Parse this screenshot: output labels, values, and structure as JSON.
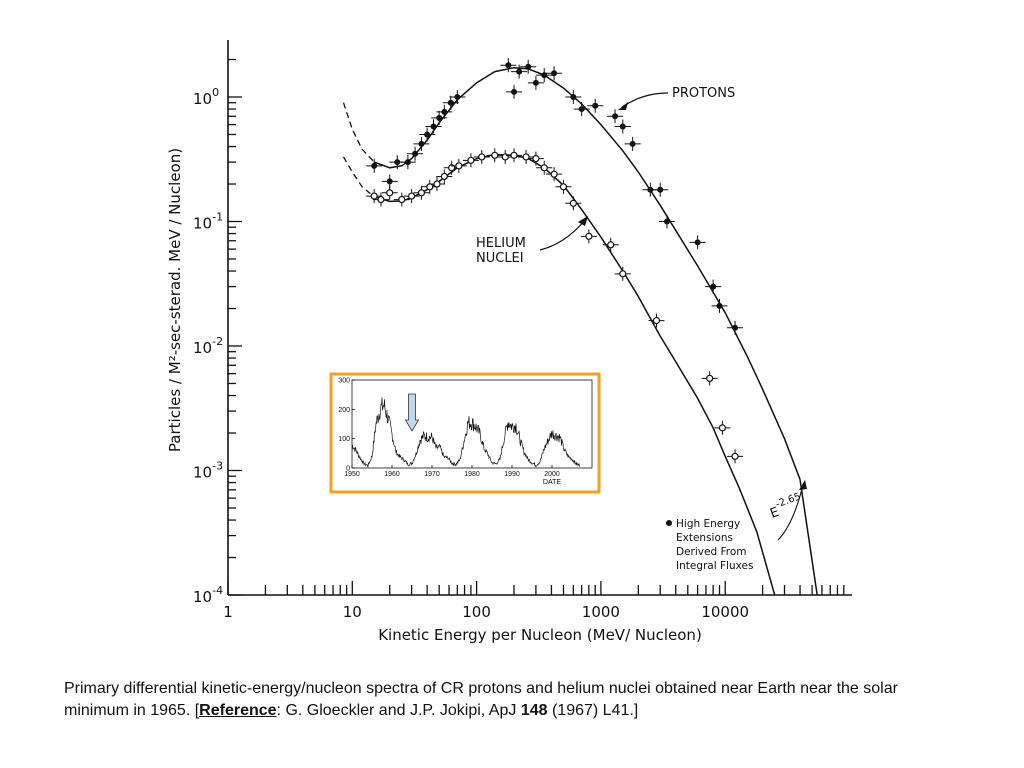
{
  "chart_data": [
    {
      "type": "scatter",
      "title": "",
      "xlabel": "Kinetic Energy per Nucleon (MeV/ Nucleon)",
      "ylabel": "Particles / M²-sec-sterad. MeV / Nucleon)",
      "xscale": "log",
      "yscale": "log",
      "xlim": [
        1,
        70000
      ],
      "ylim": [
        0.0001,
        4
      ],
      "x_tick_labels": [
        "1",
        "10",
        "100",
        "1000",
        "10000"
      ],
      "x_tick_values": [
        1,
        10,
        100,
        1000,
        10000
      ],
      "y_tick_labels": [
        {
          "base": "10",
          "exp": "0",
          "value": 1
        },
        {
          "base": "10",
          "exp": "-1",
          "value": 0.1
        },
        {
          "base": "10",
          "exp": "-2",
          "value": 0.01
        },
        {
          "base": "10",
          "exp": "-3",
          "value": 0.001
        },
        {
          "base": "10",
          "exp": "-4",
          "value": 0.0001
        }
      ],
      "series": [
        {
          "name": "PROTONS",
          "points": [
            {
              "x": 15,
              "y": 0.28
            },
            {
              "x": 20,
              "y": 0.21
            },
            {
              "x": 23,
              "y": 0.3
            },
            {
              "x": 28,
              "y": 0.3
            },
            {
              "x": 32,
              "y": 0.35
            },
            {
              "x": 36,
              "y": 0.42
            },
            {
              "x": 40,
              "y": 0.5
            },
            {
              "x": 45,
              "y": 0.58
            },
            {
              "x": 50,
              "y": 0.68
            },
            {
              "x": 55,
              "y": 0.76
            },
            {
              "x": 62,
              "y": 0.9
            },
            {
              "x": 70,
              "y": 1.0
            },
            {
              "x": 180,
              "y": 1.8
            },
            {
              "x": 200,
              "y": 1.1
            },
            {
              "x": 220,
              "y": 1.6
            },
            {
              "x": 260,
              "y": 1.75
            },
            {
              "x": 300,
              "y": 1.3
            },
            {
              "x": 350,
              "y": 1.5
            },
            {
              "x": 420,
              "y": 1.55
            },
            {
              "x": 600,
              "y": 1.0
            },
            {
              "x": 700,
              "y": 0.8
            },
            {
              "x": 900,
              "y": 0.85
            },
            {
              "x": 1300,
              "y": 0.7
            },
            {
              "x": 1500,
              "y": 0.58
            },
            {
              "x": 1800,
              "y": 0.42
            },
            {
              "x": 2500,
              "y": 0.18
            },
            {
              "x": 3000,
              "y": 0.18
            },
            {
              "x": 3400,
              "y": 0.1
            },
            {
              "x": 6000,
              "y": 0.068
            },
            {
              "x": 8000,
              "y": 0.03
            },
            {
              "x": 9000,
              "y": 0.021
            },
            {
              "x": 12000,
              "y": 0.014
            }
          ]
        },
        {
          "name": "HELIUM NUCLEI",
          "points": [
            {
              "x": 15,
              "y": 0.16
            },
            {
              "x": 17,
              "y": 0.15
            },
            {
              "x": 20,
              "y": 0.17
            },
            {
              "x": 25,
              "y": 0.15
            },
            {
              "x": 30,
              "y": 0.16
            },
            {
              "x": 36,
              "y": 0.17
            },
            {
              "x": 42,
              "y": 0.19
            },
            {
              "x": 48,
              "y": 0.2
            },
            {
              "x": 55,
              "y": 0.23
            },
            {
              "x": 63,
              "y": 0.27
            },
            {
              "x": 72,
              "y": 0.28
            },
            {
              "x": 90,
              "y": 0.31
            },
            {
              "x": 110,
              "y": 0.33
            },
            {
              "x": 140,
              "y": 0.34
            },
            {
              "x": 170,
              "y": 0.33
            },
            {
              "x": 200,
              "y": 0.34
            },
            {
              "x": 250,
              "y": 0.33
            },
            {
              "x": 300,
              "y": 0.32
            },
            {
              "x": 350,
              "y": 0.27
            },
            {
              "x": 420,
              "y": 0.24
            },
            {
              "x": 500,
              "y": 0.19
            },
            {
              "x": 600,
              "y": 0.14
            },
            {
              "x": 800,
              "y": 0.076
            },
            {
              "x": 1200,
              "y": 0.065
            },
            {
              "x": 1500,
              "y": 0.038
            },
            {
              "x": 2800,
              "y": 0.016
            },
            {
              "x": 7500,
              "y": 0.0055
            },
            {
              "x": 9500,
              "y": 0.0022
            },
            {
              "x": 12000,
              "y": 0.0013
            }
          ]
        }
      ],
      "annotations": [
        {
          "text": "PROTONS"
        },
        {
          "lines": [
            "HELIUM",
            "NUCLEI"
          ]
        },
        {
          "base": "E",
          "exp": "-2.65"
        }
      ],
      "legend": {
        "placement": "lower-right",
        "lines": [
          "High Energy",
          "Extensions",
          "Derived From",
          "Integral Fluxes"
        ]
      }
    },
    {
      "type": "line",
      "title": "",
      "xlabel": "DATE",
      "ylabel": "",
      "xlim": [
        1950,
        2010
      ],
      "ylim": [
        0,
        300
      ],
      "x_tick_labels": [
        "1950",
        "1960",
        "1970",
        "1980",
        "1990",
        "2000"
      ],
      "y_tick_labels": [
        "0",
        "100",
        "200",
        "300"
      ],
      "series": [
        {
          "points": [
            [
              1950,
              80
            ],
            [
              1951,
              60
            ],
            [
              1952,
              35
            ],
            [
              1953,
              15
            ],
            [
              1954,
              8
            ],
            [
              1955,
              40
            ],
            [
              1956,
              150
            ],
            [
              1957,
              200
            ],
            [
              1958,
              215
            ],
            [
              1959,
              170
            ],
            [
              1960,
              115
            ],
            [
              1961,
              55
            ],
            [
              1962,
              38
            ],
            [
              1963,
              28
            ],
            [
              1964,
              12
            ],
            [
              1965,
              16
            ],
            [
              1966,
              48
            ],
            [
              1967,
              95
            ],
            [
              1968,
              110
            ],
            [
              1969,
              105
            ],
            [
              1970,
              105
            ],
            [
              1971,
              68
            ],
            [
              1972,
              70
            ],
            [
              1973,
              38
            ],
            [
              1974,
              35
            ],
            [
              1975,
              16
            ],
            [
              1976,
              13
            ],
            [
              1977,
              28
            ],
            [
              1978,
              92
            ],
            [
              1979,
              155
            ],
            [
              1980,
              155
            ],
            [
              1981,
              140
            ],
            [
              1982,
              116
            ],
            [
              1983,
              67
            ],
            [
              1984,
              46
            ],
            [
              1985,
              18
            ],
            [
              1986,
              14
            ],
            [
              1987,
              30
            ],
            [
              1988,
              100
            ],
            [
              1989,
              158
            ],
            [
              1990,
              142
            ],
            [
              1991,
              146
            ],
            [
              1992,
              95
            ],
            [
              1993,
              55
            ],
            [
              1994,
              30
            ],
            [
              1995,
              18
            ],
            [
              1996,
              9
            ],
            [
              1997,
              22
            ],
            [
              1998,
              64
            ],
            [
              1999,
              93
            ],
            [
              2000,
              120
            ],
            [
              2001,
              111
            ],
            [
              2002,
              104
            ],
            [
              2003,
              64
            ],
            [
              2004,
              40
            ],
            [
              2005,
              30
            ],
            [
              2006,
              15
            ],
            [
              2007,
              8
            ]
          ]
        }
      ],
      "marker_arrow_x": 1965,
      "colors": {
        "frame": "#F5A11C",
        "arrow_fill": "#BFD9EE"
      }
    }
  ],
  "caption": {
    "text_before": "Primary differential kinetic-energy/nucleon spectra of CR protons and helium nuclei obtained near Earth near the solar minimum in 1965. [",
    "reference_label": "Reference",
    "text_mid": ": G. Gloeckler and J.P. Jokipi, ApJ ",
    "volume": "148",
    "text_after": " (1967) L41.]"
  }
}
